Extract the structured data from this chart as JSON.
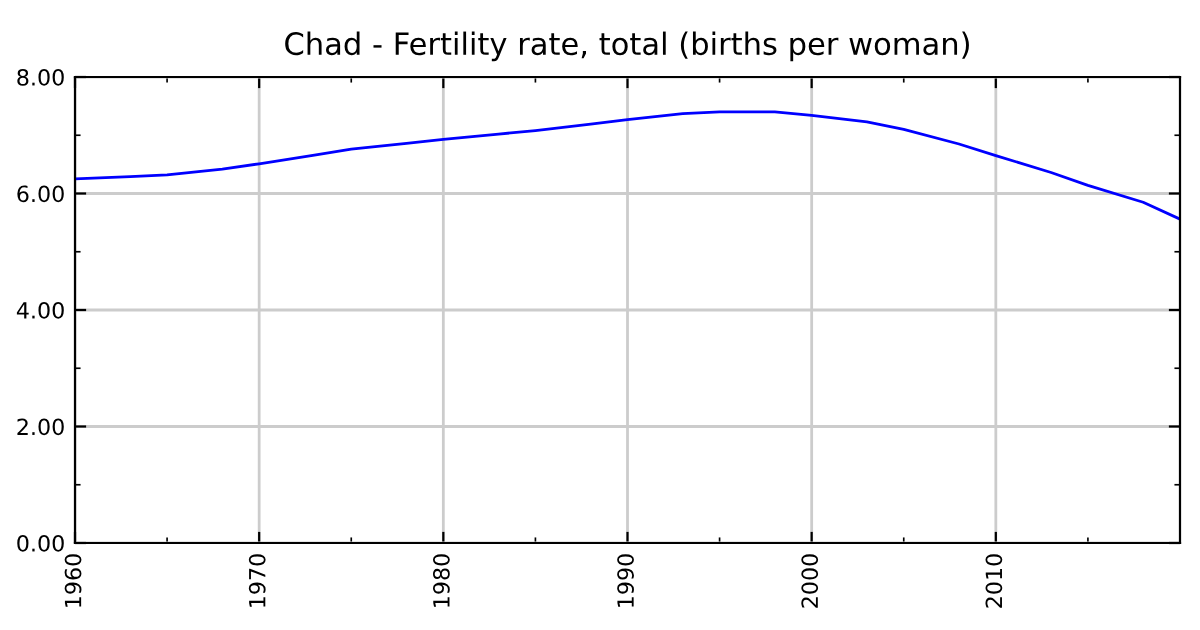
{
  "chart_data": {
    "type": "line",
    "title": "Chad - Fertility rate, total (births per woman)",
    "x": [
      1960,
      1963,
      1965,
      1968,
      1970,
      1973,
      1975,
      1978,
      1980,
      1983,
      1985,
      1988,
      1990,
      1993,
      1995,
      1998,
      2000,
      2003,
      2005,
      2008,
      2010,
      2013,
      2015,
      2018,
      2020
    ],
    "series": [
      {
        "color": "#0000ff",
        "values": [
          6.25,
          6.29,
          6.32,
          6.42,
          6.51,
          6.66,
          6.76,
          6.86,
          6.93,
          7.02,
          7.08,
          7.19,
          7.27,
          7.37,
          7.4,
          7.4,
          7.34,
          7.23,
          7.1,
          6.85,
          6.65,
          6.36,
          6.14,
          5.85,
          5.56
        ]
      }
    ],
    "xlim": [
      1960,
      2020
    ],
    "xticks": [
      1960,
      1970,
      1980,
      1990,
      2000,
      2010
    ],
    "ylim": [
      0,
      8
    ],
    "yticks": [
      {
        "value": 0,
        "label": "0.00"
      },
      {
        "value": 2,
        "label": "2.00"
      },
      {
        "value": 4,
        "label": "4.00"
      },
      {
        "value": 6,
        "label": "6.00"
      },
      {
        "value": 8,
        "label": "8.00"
      }
    ],
    "grid": true,
    "legend": false,
    "marker": "none",
    "line_style": "solid"
  }
}
